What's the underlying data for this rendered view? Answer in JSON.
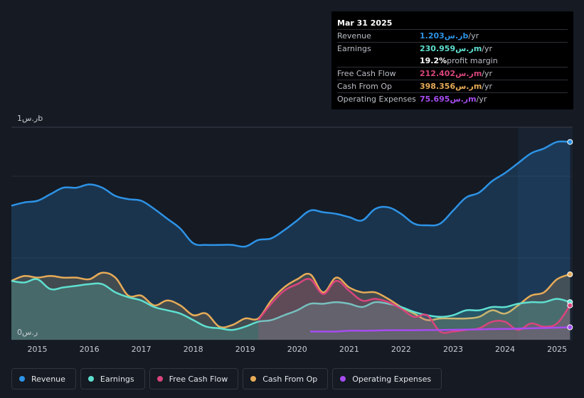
{
  "tooltip": {
    "date": "Mar 31 2025",
    "rows": [
      {
        "label": "Revenue",
        "value": "1.203ر.سb",
        "unit": " /yr",
        "color": "#2d93e6"
      },
      {
        "label": "Earnings",
        "value": "230.959ر.سm",
        "unit": " /yr",
        "color": "#5fdfd0"
      },
      {
        "label": "",
        "value": "19.2%",
        "unit": " profit margin",
        "color": "#ffffff"
      },
      {
        "label": "Free Cash Flow",
        "value": "212.402ر.سm",
        "unit": " /yr",
        "color": "#d9457c"
      },
      {
        "label": "Cash From Op",
        "value": "398.356ر.سm",
        "unit": " /yr",
        "color": "#e7ab57"
      },
      {
        "label": "Operating Expenses",
        "value": "75.695ر.سm",
        "unit": " /yr",
        "color": "#a64cf0"
      }
    ]
  },
  "legend": [
    {
      "label": "Revenue",
      "color": "#2d93e6"
    },
    {
      "label": "Earnings",
      "color": "#5fdfd0"
    },
    {
      "label": "Free Cash Flow",
      "color": "#d9457c"
    },
    {
      "label": "Cash From Op",
      "color": "#e7ab57"
    },
    {
      "label": "Operating Expenses",
      "color": "#a64cf0"
    }
  ],
  "chart_data": {
    "type": "area",
    "y_tick_labels": [
      "1ر.سb",
      "0ر.س"
    ],
    "ylim": [
      0,
      1.3
    ],
    "x_ticks": [
      2015,
      2016,
      2017,
      2018,
      2019,
      2020,
      2021,
      2022,
      2023,
      2024,
      2025
    ],
    "x_tick_labels": [
      "2015",
      "2016",
      "2017",
      "2018",
      "2019",
      "2020",
      "2021",
      "2022",
      "2023",
      "2024",
      "2025"
    ],
    "xlim": [
      2014.5,
      2025.3
    ],
    "highlight_from": 2024.25,
    "series": [
      {
        "name": "Revenue",
        "color": "#2d93e6",
        "area": true,
        "x": [
          2014.5,
          2014.75,
          2015,
          2015.25,
          2015.5,
          2015.75,
          2016,
          2016.25,
          2016.5,
          2016.75,
          2017,
          2017.25,
          2017.5,
          2017.75,
          2018,
          2018.25,
          2018.5,
          2018.75,
          2019,
          2019.25,
          2019.5,
          2019.75,
          2020,
          2020.25,
          2020.5,
          2020.75,
          2021,
          2021.25,
          2021.5,
          2021.75,
          2022,
          2022.25,
          2022.5,
          2022.75,
          2023,
          2023.25,
          2023.5,
          2023.75,
          2024,
          2024.25,
          2024.5,
          2024.75,
          2025,
          2025.25
        ],
        "y": [
          0.82,
          0.84,
          0.85,
          0.89,
          0.93,
          0.93,
          0.95,
          0.93,
          0.88,
          0.86,
          0.85,
          0.8,
          0.74,
          0.68,
          0.59,
          0.58,
          0.58,
          0.58,
          0.57,
          0.61,
          0.62,
          0.67,
          0.73,
          0.79,
          0.78,
          0.77,
          0.75,
          0.73,
          0.8,
          0.81,
          0.77,
          0.71,
          0.7,
          0.71,
          0.79,
          0.87,
          0.9,
          0.97,
          1.02,
          1.08,
          1.14,
          1.17,
          1.21,
          1.21
        ]
      },
      {
        "name": "Cash From Op",
        "color": "#e7ab57",
        "area": true,
        "x": [
          2014.5,
          2014.75,
          2015,
          2015.25,
          2015.5,
          2015.75,
          2016,
          2016.25,
          2016.5,
          2016.75,
          2017,
          2017.25,
          2017.5,
          2017.75,
          2018,
          2018.25,
          2018.5,
          2018.75,
          2019,
          2019.25,
          2019.5,
          2019.75,
          2020,
          2020.25,
          2020.5,
          2020.75,
          2021,
          2021.25,
          2021.5,
          2021.75,
          2022,
          2022.25,
          2022.5,
          2022.75,
          2023,
          2023.25,
          2023.5,
          2023.75,
          2024,
          2024.25,
          2024.5,
          2024.75,
          2025,
          2025.25
        ],
        "y": [
          0.36,
          0.39,
          0.38,
          0.39,
          0.38,
          0.38,
          0.37,
          0.41,
          0.38,
          0.27,
          0.27,
          0.21,
          0.24,
          0.21,
          0.15,
          0.16,
          0.08,
          0.09,
          0.13,
          0.13,
          0.24,
          0.32,
          0.37,
          0.4,
          0.29,
          0.38,
          0.32,
          0.29,
          0.29,
          0.25,
          0.2,
          0.16,
          0.12,
          0.13,
          0.13,
          0.13,
          0.14,
          0.18,
          0.16,
          0.21,
          0.27,
          0.29,
          0.37,
          0.4
        ]
      },
      {
        "name": "Earnings",
        "color": "#5fdfd0",
        "area": true,
        "x": [
          2014.5,
          2014.75,
          2015,
          2015.25,
          2015.5,
          2015.75,
          2016,
          2016.25,
          2016.5,
          2016.75,
          2017,
          2017.25,
          2017.5,
          2017.75,
          2018,
          2018.25,
          2018.5,
          2018.75,
          2019,
          2019.25,
          2019.5,
          2019.75,
          2020,
          2020.25,
          2020.5,
          2020.75,
          2021,
          2021.25,
          2021.5,
          2021.75,
          2022,
          2022.25,
          2022.5,
          2022.75,
          2023,
          2023.25,
          2023.5,
          2023.75,
          2024,
          2024.25,
          2024.5,
          2024.75,
          2025,
          2025.25
        ],
        "y": [
          0.36,
          0.35,
          0.37,
          0.31,
          0.32,
          0.33,
          0.34,
          0.34,
          0.29,
          0.26,
          0.24,
          0.2,
          0.18,
          0.16,
          0.12,
          0.08,
          0.07,
          0.06,
          0.08,
          0.11,
          0.12,
          0.15,
          0.18,
          0.22,
          0.22,
          0.23,
          0.22,
          0.2,
          0.23,
          0.22,
          0.2,
          0.17,
          0.15,
          0.14,
          0.15,
          0.18,
          0.18,
          0.2,
          0.2,
          0.22,
          0.23,
          0.23,
          0.25,
          0.23
        ]
      },
      {
        "name": "Free Cash Flow",
        "color": "#d9457c",
        "area": true,
        "x": [
          2019.25,
          2019.5,
          2019.75,
          2020,
          2020.25,
          2020.5,
          2020.75,
          2021,
          2021.25,
          2021.5,
          2021.75,
          2022,
          2022.25,
          2022.5,
          2022.75,
          2023,
          2023.25,
          2023.5,
          2023.75,
          2024,
          2024.25,
          2024.5,
          2024.75,
          2025,
          2025.25
        ],
        "y": [
          0.12,
          0.22,
          0.3,
          0.34,
          0.37,
          0.28,
          0.36,
          0.3,
          0.24,
          0.25,
          0.23,
          0.19,
          0.14,
          0.15,
          0.05,
          0.05,
          0.06,
          0.07,
          0.11,
          0.11,
          0.06,
          0.1,
          0.08,
          0.1,
          0.21
        ]
      },
      {
        "name": "Operating Expenses",
        "color": "#a64cf0",
        "area": false,
        "x": [
          2020.25,
          2020.5,
          2020.75,
          2021,
          2021.25,
          2021.5,
          2021.75,
          2022,
          2022.25,
          2022.5,
          2022.75,
          2023,
          2023.25,
          2023.5,
          2023.75,
          2024,
          2024.25,
          2024.5,
          2024.75,
          2025,
          2025.25
        ],
        "y": [
          0.05,
          0.05,
          0.05,
          0.055,
          0.055,
          0.056,
          0.058,
          0.058,
          0.058,
          0.059,
          0.06,
          0.061,
          0.062,
          0.063,
          0.065,
          0.066,
          0.068,
          0.07,
          0.072,
          0.074,
          0.076
        ]
      }
    ]
  }
}
